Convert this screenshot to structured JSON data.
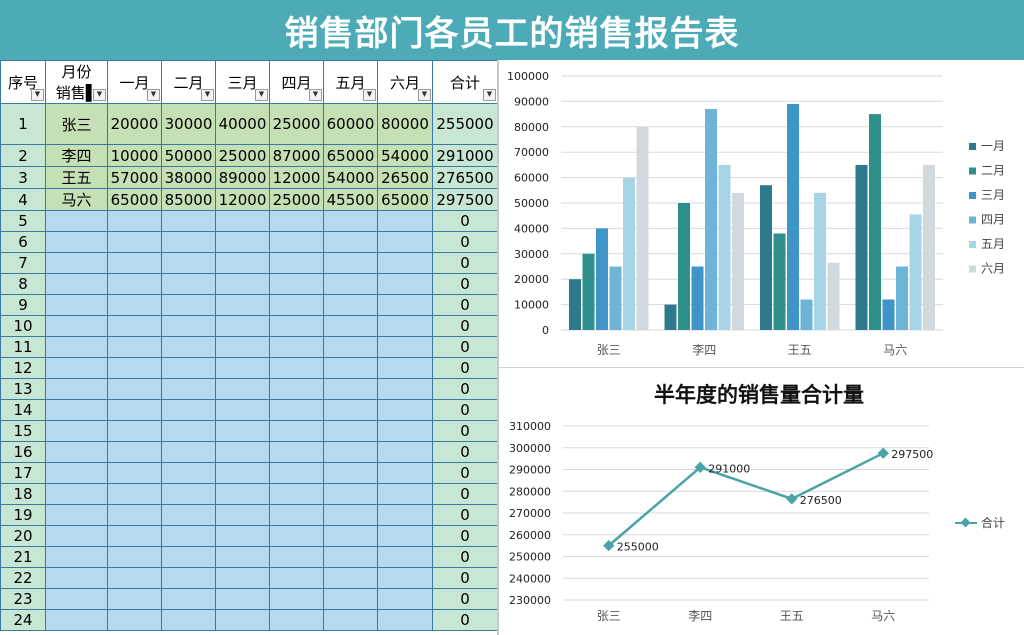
{
  "title": "销售部门各员工的销售报告表",
  "table": {
    "headers": [
      {
        "label": "序号",
        "label2": ""
      },
      {
        "label": "月份",
        "label2": "销售▌"
      },
      {
        "label": "一月",
        "label2": ""
      },
      {
        "label": "二月",
        "label2": ""
      },
      {
        "label": "三月",
        "label2": ""
      },
      {
        "label": "四月",
        "label2": ""
      },
      {
        "label": "五月",
        "label2": ""
      },
      {
        "label": "六月",
        "label2": ""
      },
      {
        "label": "合计",
        "label2": ""
      }
    ],
    "rows": [
      [
        "1",
        "张三",
        "20000",
        "30000",
        "40000",
        "25000",
        "60000",
        "80000",
        "255000"
      ],
      [
        "2",
        "李四",
        "10000",
        "50000",
        "25000",
        "87000",
        "65000",
        "54000",
        "291000"
      ],
      [
        "3",
        "王五",
        "57000",
        "38000",
        "89000",
        "12000",
        "54000",
        "26500",
        "276500"
      ],
      [
        "4",
        "马六",
        "65000",
        "85000",
        "12000",
        "25000",
        "45500",
        "65000",
        "297500"
      ],
      [
        "5",
        "",
        "",
        "",
        "",
        "",
        "",
        "",
        "0"
      ],
      [
        "6",
        "",
        "",
        "",
        "",
        "",
        "",
        "",
        "0"
      ],
      [
        "7",
        "",
        "",
        "",
        "",
        "",
        "",
        "",
        "0"
      ],
      [
        "8",
        "",
        "",
        "",
        "",
        "",
        "",
        "",
        "0"
      ],
      [
        "9",
        "",
        "",
        "",
        "",
        "",
        "",
        "",
        "0"
      ],
      [
        "10",
        "",
        "",
        "",
        "",
        "",
        "",
        "",
        "0"
      ],
      [
        "11",
        "",
        "",
        "",
        "",
        "",
        "",
        "",
        "0"
      ],
      [
        "12",
        "",
        "",
        "",
        "",
        "",
        "",
        "",
        "0"
      ],
      [
        "13",
        "",
        "",
        "",
        "",
        "",
        "",
        "",
        "0"
      ],
      [
        "14",
        "",
        "",
        "",
        "",
        "",
        "",
        "",
        "0"
      ],
      [
        "15",
        "",
        "",
        "",
        "",
        "",
        "",
        "",
        "0"
      ],
      [
        "16",
        "",
        "",
        "",
        "",
        "",
        "",
        "",
        "0"
      ],
      [
        "17",
        "",
        "",
        "",
        "",
        "",
        "",
        "",
        "0"
      ],
      [
        "18",
        "",
        "",
        "",
        "",
        "",
        "",
        "",
        "0"
      ],
      [
        "19",
        "",
        "",
        "",
        "",
        "",
        "",
        "",
        "0"
      ],
      [
        "20",
        "",
        "",
        "",
        "",
        "",
        "",
        "",
        "0"
      ],
      [
        "21",
        "",
        "",
        "",
        "",
        "",
        "",
        "",
        "0"
      ],
      [
        "22",
        "",
        "",
        "",
        "",
        "",
        "",
        "",
        "0"
      ],
      [
        "23",
        "",
        "",
        "",
        "",
        "",
        "",
        "",
        "0"
      ],
      [
        "24",
        "",
        "",
        "",
        "",
        "",
        "",
        "",
        "0"
      ]
    ]
  },
  "chart_data": [
    {
      "type": "bar",
      "categories": [
        "张三",
        "李四",
        "王五",
        "马六"
      ],
      "series": [
        {
          "name": "一月",
          "values": [
            20000,
            10000,
            57000,
            65000
          ],
          "color": "#2e7a8c"
        },
        {
          "name": "二月",
          "values": [
            30000,
            50000,
            38000,
            85000
          ],
          "color": "#2f8f8a"
        },
        {
          "name": "三月",
          "values": [
            40000,
            25000,
            89000,
            12000
          ],
          "color": "#3f95c8"
        },
        {
          "name": "四月",
          "values": [
            25000,
            87000,
            12000,
            25000
          ],
          "color": "#6db4d6"
        },
        {
          "name": "五月",
          "values": [
            60000,
            65000,
            54000,
            45500
          ],
          "color": "#a7d5e6"
        },
        {
          "name": "六月",
          "values": [
            80000,
            54000,
            26500,
            65000
          ],
          "color": "#d2d9dc"
        }
      ],
      "title": "",
      "ylim": [
        0,
        100000
      ],
      "yticks": [
        "0",
        "10000",
        "20000",
        "30000",
        "40000",
        "50000",
        "60000",
        "70000",
        "80000",
        "90000",
        "100000"
      ],
      "grid": true,
      "legend": "right"
    },
    {
      "type": "line",
      "categories": [
        "张三",
        "李四",
        "王五",
        "马六"
      ],
      "series": [
        {
          "name": "合计",
          "values": [
            255000,
            291000,
            276500,
            297500
          ],
          "color": "#4aa3a6"
        }
      ],
      "data_labels": [
        "255000",
        "291000",
        "276500",
        "297500"
      ],
      "title": "半年度的销售量合计量",
      "ylim": [
        230000,
        310000
      ],
      "yticks": [
        "230000",
        "240000",
        "250000",
        "260000",
        "270000",
        "280000",
        "290000",
        "300000",
        "310000"
      ],
      "grid": true,
      "legend": "right"
    }
  ]
}
